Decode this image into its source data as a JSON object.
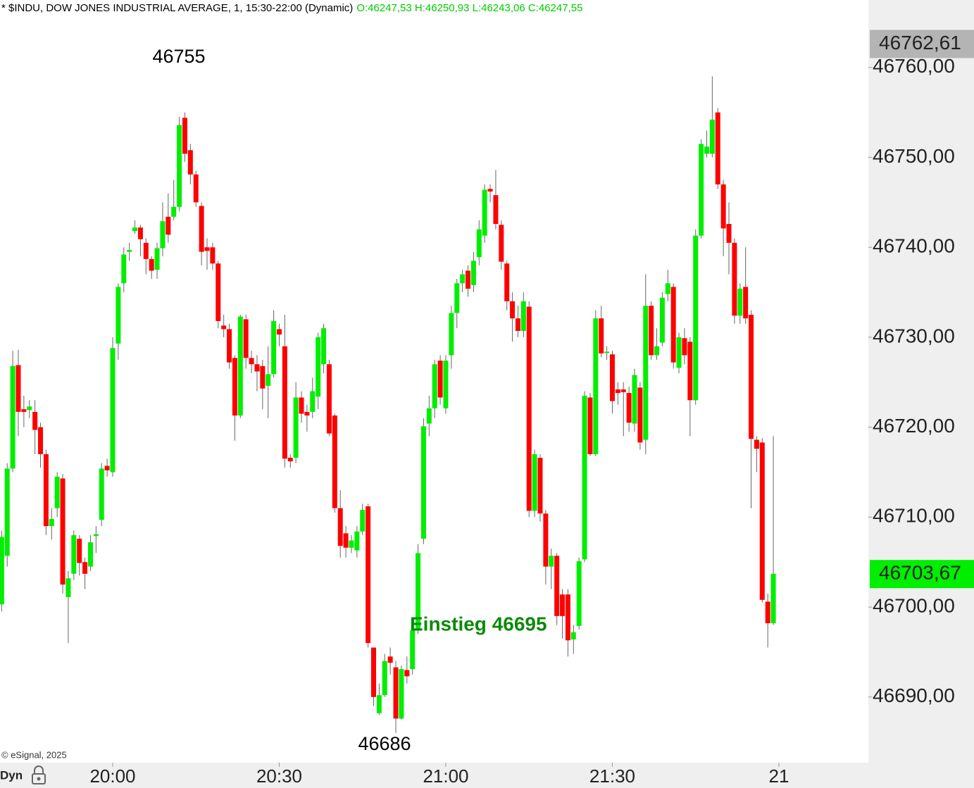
{
  "chart_data": {
    "type": "candlestick",
    "title": "* $INDU, DOW JONES INDUSTRIAL AVERAGE, 1, 15:30-22:00 (Dynamic)",
    "ohlc_readout": "O:46247,53 H:46250,93 L:46243,06 C:46247,55",
    "credit": "© eSignal, 2025",
    "mode_label": "Dyn",
    "up_color": "#00ee00",
    "down_color": "#ff0000",
    "x": [
      "19:40",
      "19:41",
      "19:42",
      "19:43",
      "19:44",
      "19:45",
      "19:46",
      "19:47",
      "19:48",
      "19:49",
      "19:50",
      "19:51",
      "19:52",
      "19:53",
      "19:54",
      "19:55",
      "19:56",
      "19:57",
      "19:58",
      "19:59",
      "20:00",
      "20:01",
      "20:02",
      "20:03",
      "20:04",
      "20:05",
      "20:06",
      "20:07",
      "20:08",
      "20:09",
      "20:10",
      "20:11",
      "20:12",
      "20:13",
      "20:14",
      "20:15",
      "20:16",
      "20:17",
      "20:18",
      "20:19",
      "20:20",
      "20:21",
      "20:22",
      "20:23",
      "20:24",
      "20:25",
      "20:26",
      "20:27",
      "20:28",
      "20:29",
      "20:30",
      "20:31",
      "20:32",
      "20:33",
      "20:34",
      "20:35",
      "20:36",
      "20:37",
      "20:38",
      "20:39",
      "20:40",
      "20:41",
      "20:42",
      "20:43",
      "20:44",
      "20:45",
      "20:46",
      "20:47",
      "20:48",
      "20:49",
      "20:50",
      "20:51",
      "20:52",
      "20:53",
      "20:54",
      "20:55",
      "20:56",
      "20:57",
      "20:58",
      "20:59",
      "21:00",
      "21:01",
      "21:02",
      "21:03",
      "21:04",
      "21:05",
      "21:06",
      "21:07",
      "21:08",
      "21:09",
      "21:10",
      "21:11",
      "21:12",
      "21:13",
      "21:14",
      "21:15",
      "21:16",
      "21:17",
      "21:18",
      "21:19",
      "21:20",
      "21:21",
      "21:22",
      "21:23",
      "21:24",
      "21:25",
      "21:26",
      "21:27",
      "21:28",
      "21:29",
      "21:30",
      "21:31",
      "21:32",
      "21:33",
      "21:34",
      "21:35",
      "21:36",
      "21:37",
      "21:38",
      "21:39",
      "21:40",
      "21:41",
      "21:42",
      "21:43",
      "21:44",
      "21:45",
      "21:46",
      "21:47",
      "21:48",
      "21:49",
      "21:50",
      "21:51",
      "21:52",
      "21:53",
      "21:54",
      "21:55",
      "21:56",
      "21:57",
      "21:58",
      "21:59"
    ],
    "open": [
      46700.3,
      46705.7,
      46715.4,
      46726.9,
      46722,
      46721.9,
      46721.7,
      46720,
      46717,
      46709,
      46711,
      46714.3,
      46701.1,
      46703.7,
      46707.6,
      46705,
      46704.5,
      46707.9,
      46709.7,
      46715.7,
      46715,
      46729.3,
      46736,
      46739.5,
      46741.8,
      46742.2,
      46740.5,
      46738.7,
      46737.5,
      46739.9,
      46743.4,
      46743.4,
      46744.5,
      46754.4,
      46750.8,
      46748.1,
      46744.6,
      46740,
      46740,
      46738.2,
      46731.3,
      46730.9,
      46727.7,
      46721.3,
      46732,
      46727.7,
      46727,
      46726.8,
      46724.6,
      46725.9,
      46730.9,
      46729,
      46716.6,
      46716.6,
      46723.3,
      46721.7,
      46721.7,
      46723.4,
      46727,
      46727,
      46721.3,
      46711,
      46708.2,
      46706.6,
      46706.3,
      46708.4,
      46711.2,
      46695.5,
      46688.2,
      46690.2,
      46694.5,
      46693.3,
      46687.6,
      46693,
      46693.1,
      46697.4,
      46707.6,
      46720.4,
      46722.1,
      46727.4,
      46722.1,
      46728,
      46732.7,
      46736,
      46737.4,
      46735.8,
      46738.9,
      46741.3,
      46746.5,
      46745.8,
      46742.5,
      46738.2,
      46734,
      46732.1,
      46730.7,
      46733.4,
      46710.7,
      46716.6,
      46710.4,
      46704.5,
      46705.7,
      46701.4,
      46701.4,
      46696.4,
      46697.9,
      46705.3,
      46723.3,
      46717,
      46732.1,
      46728.3,
      46728.1,
      46724.2,
      46724.2,
      46723.8,
      46720.4,
      46724.4,
      46718.6,
      46733.5,
      46728,
      46729.4,
      46734.8,
      46735.6,
      46726.6,
      46729.9,
      46729.5,
      46723,
      46741.3,
      46750.4,
      46750.4,
      46755,
      46747,
      46742.6,
      46740.5,
      46732.4,
      46735.6,
      46732.5,
      46718.6,
      46718.3,
      46700.6,
      46698.2
    ],
    "high": [
      46708.5,
      46716,
      46728.5,
      46728.6,
      46723.5,
      46723,
      46723,
      46720.5,
      46717.5,
      46711,
      46715,
      46714.8,
      46704,
      46708.5,
      46708,
      46705.5,
      46708,
      46709,
      46716,
      46716.5,
      46730,
      46736,
      46740,
      46740.5,
      46743,
      46742.5,
      46741,
      46739,
      46740.5,
      46745,
      46746,
      46747.5,
      46754.5,
      46755,
      46751.5,
      46748.5,
      46745,
      46741,
      46740.5,
      46738.5,
      46732.5,
      46731.5,
      46728,
      46732.5,
      46732.5,
      46728.5,
      46728,
      46727.5,
      46729,
      46733,
      46731.5,
      46732.5,
      46717,
      46725,
      46724,
      46722.5,
      46725.5,
      46730.5,
      46731.5,
      46727.5,
      46721.5,
      46713,
      46709,
      46708,
      46709,
      46711.5,
      46711.5,
      46695.5,
      46691.5,
      46694.8,
      46695.5,
      46694,
      46693.5,
      46694.5,
      46698.5,
      46707,
      46721,
      46723.5,
      46727.5,
      46728,
      46728,
      46733.5,
      46736.5,
      46737.5,
      46738,
      46739.5,
      46743,
      46747,
      46747,
      46748.6,
      46743,
      46738.5,
      46735,
      46733.5,
      46735,
      46734,
      46717.5,
      46717,
      46710.8,
      46706.5,
      46706,
      46702,
      46702,
      46698,
      46705.5,
      46724,
      46723.8,
      46733,
      46733.5,
      46729,
      46728.5,
      46725,
      46725,
      46724.5,
      46726.5,
      46725,
      46737,
      46734,
      46731,
      46735,
      46737.5,
      46736,
      46730.5,
      46731,
      46730,
      46742,
      46752,
      46753,
      46759,
      46755.5,
      46747.5,
      46745,
      46741,
      46736,
      46740,
      46733,
      46719,
      46718.8,
      46701.5,
      46719
    ],
    "low": [
      46699.5,
      46704.5,
      46715,
      46719,
      46720,
      46721,
      46717,
      46715.5,
      46708,
      46707.5,
      46710,
      46701.5,
      46696,
      46703,
      46703.5,
      46702,
      46704,
      46706,
      46709,
      46714.5,
      46714.5,
      46727.5,
      46735,
      46738.5,
      46741.5,
      46739,
      46737,
      46736.5,
      46736.5,
      46739,
      46740.5,
      46743,
      46744,
      46749.5,
      46747,
      46744.5,
      46738,
      46737.5,
      46737.5,
      46731,
      46730,
      46726.5,
      46718.5,
      46721,
      46726.5,
      46726,
      46724,
      46722,
      46721,
      46725.5,
      46729,
      46715.5,
      46715.5,
      46716,
      46720.5,
      46719.5,
      46721,
      46722,
      46726,
      46719,
      46710.5,
      46705.5,
      46705.5,
      46706,
      46705.5,
      46708,
      46695.5,
      46689,
      46688,
      46690,
      46692.5,
      46686,
      46687.5,
      46691.5,
      46692.5,
      46697,
      46707,
      46719,
      46721,
      46722.5,
      46721.5,
      46726.5,
      46731,
      46735,
      46734.5,
      46735,
      46738,
      46740.5,
      46745,
      46742,
      46737.5,
      46733,
      46729.5,
      46730,
      46730,
      46710,
      46710,
      46709.5,
      46702.5,
      46702,
      46698,
      46696.5,
      46694.5,
      46694.8,
      46697.5,
      46705,
      46716.8,
      46716.8,
      46727.8,
      46727.5,
      46721.5,
      46722.5,
      46719,
      46719.5,
      46719.5,
      46717.5,
      46717,
      46727.5,
      46727.5,
      46729,
      46734,
      46726.5,
      46726,
      46727,
      46719,
      46722.5,
      46741,
      46750,
      46750,
      46746.5,
      46739,
      46737,
      46731.5,
      46731.5,
      46731.5,
      46711,
      46715,
      46700.5,
      46695.5,
      46698
    ],
    "close": [
      46707.8,
      46715.4,
      46726.8,
      46721.7,
      46721.7,
      46722.3,
      46719.7,
      46717,
      46709,
      46709.8,
      46714.5,
      46702.5,
      46703.2,
      46708,
      46704.9,
      46703.7,
      46707.2,
      46708.1,
      46715.4,
      46715.2,
      46728.8,
      46735.6,
      46739.2,
      46739.7,
      46742.2,
      46740.9,
      46738.7,
      46737.4,
      46739.9,
      46742.9,
      46741.4,
      46744.5,
      46753.6,
      46750.4,
      46748.1,
      46745,
      46739.5,
      46739.6,
      46738.2,
      46731.8,
      46730.9,
      46727.2,
      46721.3,
      46732.3,
      46727.7,
      46727,
      46726.2,
      46724.3,
      46725.9,
      46731.8,
      46730.3,
      46716.5,
      46716.2,
      46723.3,
      46721.5,
      46721.3,
      46724,
      46730,
      46731,
      46719.3,
      46711,
      46706.8,
      46706.6,
      46707.4,
      46708.4,
      46710.8,
      46696,
      46690,
      46690.2,
      46694,
      46693.8,
      46687.6,
      46693.1,
      46692.3,
      46697.4,
      46706,
      46720.1,
      46722.1,
      46727,
      46723.3,
      46727.4,
      46732.7,
      46736,
      46737,
      46735.4,
      46738.5,
      46742,
      46746.4,
      46746.2,
      46742.6,
      46738.4,
      46734,
      46732.1,
      46730.7,
      46734,
      46710.7,
      46717,
      46710.4,
      46704.5,
      46705.7,
      46699,
      46699,
      46696.3,
      46697.2,
      46705.1,
      46723.5,
      46717,
      46732.1,
      46728.2,
      46728.4,
      46722.9,
      46723.8,
      46723.9,
      46720.5,
      46725.8,
      46718.3,
      46733.5,
      46728,
      46729,
      46734.4,
      46736,
      46727.2,
      46730,
      46728,
      46723,
      46741.3,
      46751.5,
      46751.2,
      46754.2,
      46747,
      46742.1,
      46740.5,
      46732.4,
      46735.4,
      46732.1,
      46718.7,
      46717.6,
      46700.8,
      46698.2,
      46703.7
    ],
    "ylim": [
      46682.7,
      46767.5
    ],
    "yticks": [
      {
        "value": 46690,
        "label": "46690,00"
      },
      {
        "value": 46700,
        "label": "46700,00"
      },
      {
        "value": 46710,
        "label": "46710,00"
      },
      {
        "value": 46720,
        "label": "46720,00"
      },
      {
        "value": 46730,
        "label": "46730,00"
      },
      {
        "value": 46740,
        "label": "46740,00"
      },
      {
        "value": 46750,
        "label": "46750,00"
      },
      {
        "value": 46760,
        "label": "46760,00"
      }
    ],
    "xticks": [
      "20:00",
      "20:30",
      "21:00",
      "21:30",
      {
        "value": "22:00",
        "label": "21"
      }
    ],
    "price_markers": [
      {
        "value": 46762.61,
        "label": "46762,61",
        "color": "#b4b4b4"
      },
      {
        "value": 46703.67,
        "label": "46703,67",
        "color": "#00ee00"
      }
    ],
    "annotations": [
      {
        "text": "46755"
      },
      {
        "text": "46686"
      },
      {
        "text": "Einstieg 46695",
        "color": "#0a8a0a"
      }
    ]
  }
}
